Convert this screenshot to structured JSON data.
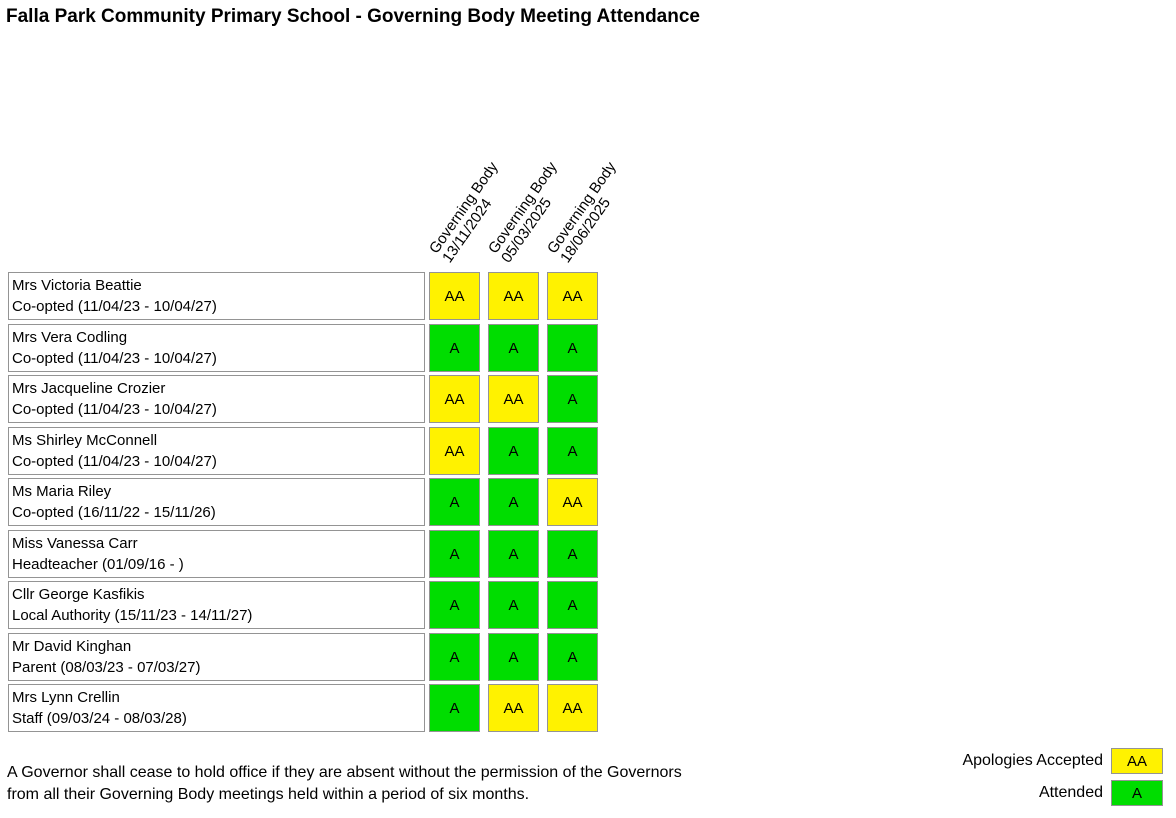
{
  "title": "Falla Park Community Primary School - Governing Body Meeting Attendance",
  "meetings": [
    {
      "label": "Governing Body",
      "date": "13/11/2024"
    },
    {
      "label": "Governing Body",
      "date": "05/03/2025"
    },
    {
      "label": "Governing Body",
      "date": "18/06/2025"
    }
  ],
  "governors": [
    {
      "name": "Mrs Victoria Beattie",
      "role": "Co-opted (11/04/23 - 10/04/27)",
      "attendance": [
        "AA",
        "AA",
        "AA"
      ]
    },
    {
      "name": "Mrs Vera Codling",
      "role": "Co-opted (11/04/23 - 10/04/27)",
      "attendance": [
        "A",
        "A",
        "A"
      ]
    },
    {
      "name": "Mrs Jacqueline Crozier",
      "role": "Co-opted (11/04/23 - 10/04/27)",
      "attendance": [
        "AA",
        "AA",
        "A"
      ]
    },
    {
      "name": "Ms Shirley McConnell",
      "role": "Co-opted (11/04/23 - 10/04/27)",
      "attendance": [
        "AA",
        "A",
        "A"
      ]
    },
    {
      "name": "Ms Maria Riley",
      "role": "Co-opted (16/11/22 - 15/11/26)",
      "attendance": [
        "A",
        "A",
        "AA"
      ]
    },
    {
      "name": "Miss Vanessa Carr",
      "role": "Headteacher (01/09/16 - )",
      "attendance": [
        "A",
        "A",
        "A"
      ]
    },
    {
      "name": "Cllr George Kasfikis",
      "role": "Local Authority (15/11/23 - 14/11/27)",
      "attendance": [
        "A",
        "A",
        "A"
      ]
    },
    {
      "name": "Mr David Kinghan",
      "role": "Parent (08/03/23 - 07/03/27)",
      "attendance": [
        "A",
        "A",
        "A"
      ]
    },
    {
      "name": "Mrs Lynn Crellin",
      "role": "Staff (09/03/24 - 08/03/28)",
      "attendance": [
        "A",
        "AA",
        "AA"
      ]
    }
  ],
  "legend": [
    {
      "label": "Apologies Accepted",
      "code": "AA",
      "color": "#fff200"
    },
    {
      "label": "Attended",
      "code": "A",
      "color": "#00dd00"
    }
  ],
  "footer": {
    "lines": [
      "A Governor shall cease to hold office if they are absent without the permission of the Governors",
      "from all their Governing Body meetings held within a period of six months."
    ]
  },
  "colors": {
    "apologies_accepted": "#fff200",
    "attended": "#00dd00",
    "cell_border": "#949494"
  }
}
